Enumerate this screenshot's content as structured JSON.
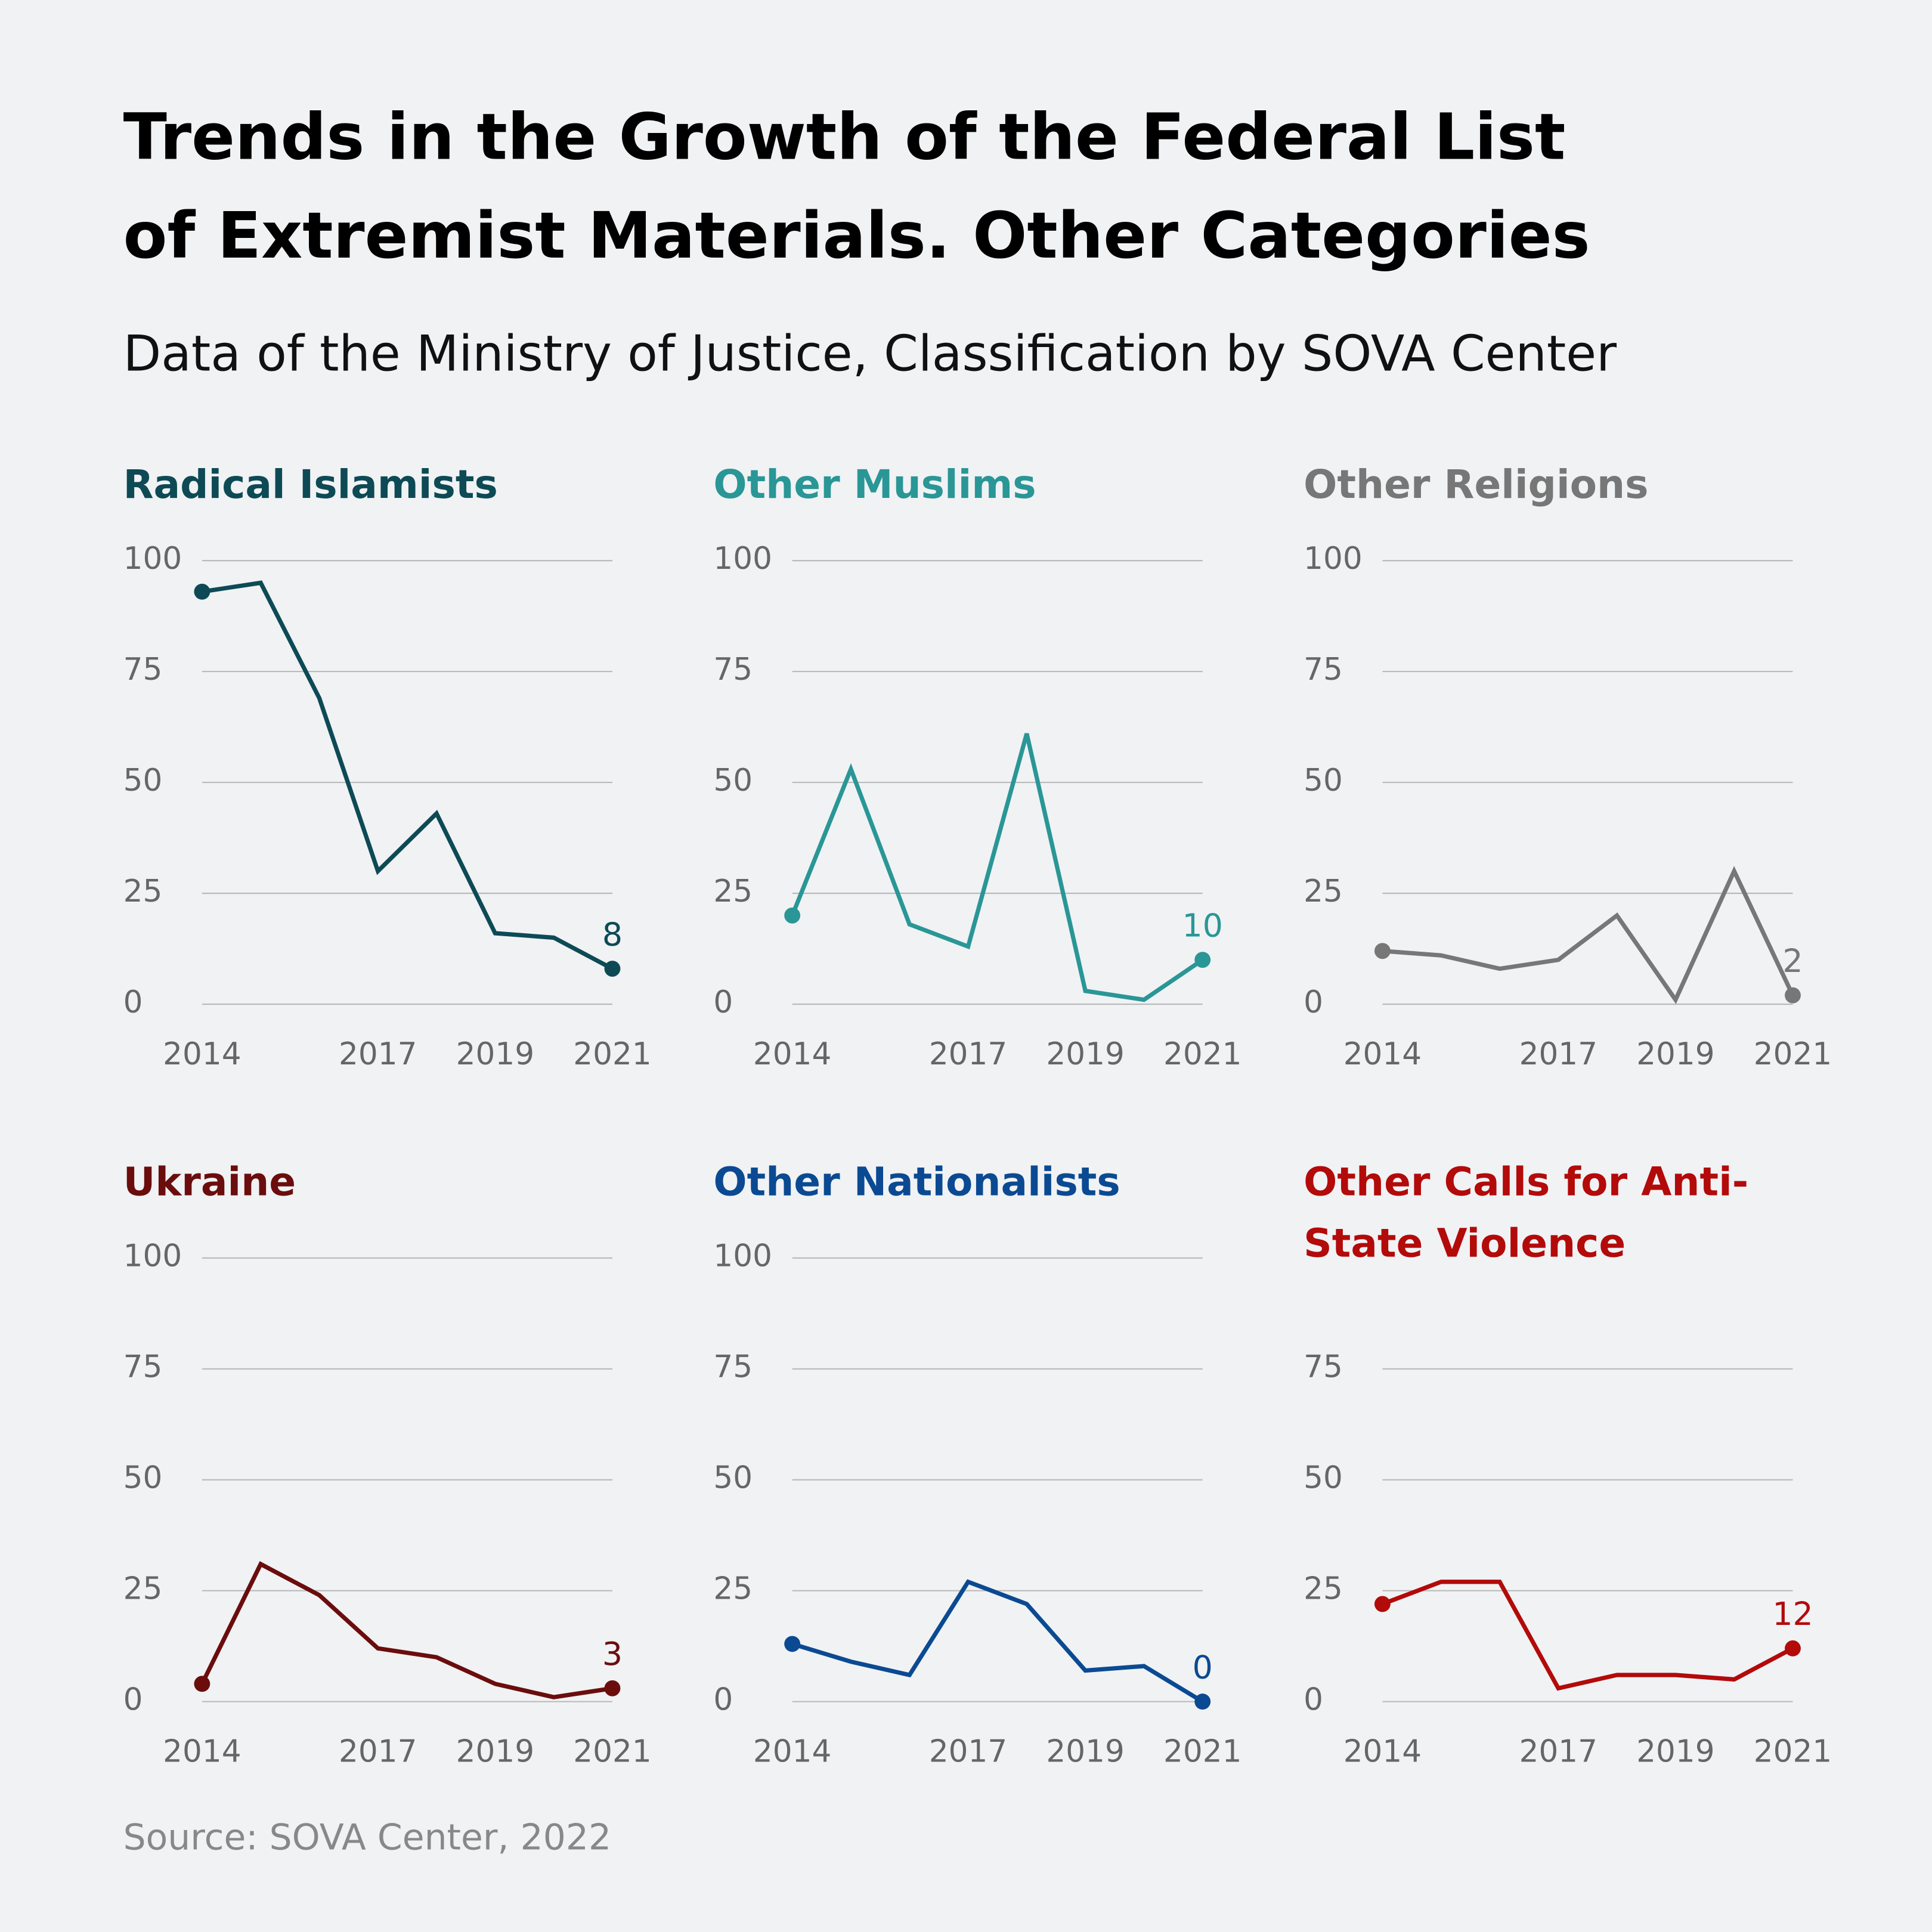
{
  "title": "Trends in the Growth of the Federal List of Extremist Materials. Other Categories",
  "subtitle": "Data of the Ministry of Justice, Classification by SOVA Center",
  "source": "Source: SOVA Center, 2022",
  "chart_data": [
    {
      "type": "line",
      "title": "Radical Islamists",
      "color": "#0d4a55",
      "x": [
        2014,
        2015,
        2016,
        2017,
        2018,
        2019,
        2020,
        2021
      ],
      "values": [
        93,
        95,
        69,
        30,
        43,
        16,
        15,
        8
      ],
      "xlim": [
        2014,
        2021
      ],
      "xticks": [
        2014,
        2017,
        2019,
        2021
      ],
      "ylim": [
        0,
        100
      ],
      "yticks": [
        0,
        25,
        50,
        75,
        100
      ],
      "grid": true
    },
    {
      "type": "line",
      "title": "Other Muslims",
      "color": "#2a9696",
      "x": [
        2014,
        2015,
        2016,
        2017,
        2018,
        2019,
        2020,
        2021
      ],
      "values": [
        20,
        53,
        18,
        13,
        61,
        3,
        1,
        10
      ],
      "xlim": [
        2014,
        2021
      ],
      "xticks": [
        2014,
        2017,
        2019,
        2021
      ],
      "ylim": [
        0,
        100
      ],
      "yticks": [
        0,
        25,
        50,
        75,
        100
      ],
      "grid": true
    },
    {
      "type": "line",
      "title": "Other Religions",
      "color": "#777777",
      "x": [
        2014,
        2015,
        2016,
        2017,
        2018,
        2019,
        2020,
        2021
      ],
      "values": [
        12,
        11,
        8,
        10,
        20,
        1,
        30,
        2
      ],
      "xlim": [
        2014,
        2021
      ],
      "xticks": [
        2014,
        2017,
        2019,
        2021
      ],
      "ylim": [
        0,
        100
      ],
      "yticks": [
        0,
        25,
        50,
        75,
        100
      ],
      "grid": true
    },
    {
      "type": "line",
      "title": "Ukraine",
      "color": "#6b0d0d",
      "x": [
        2014,
        2015,
        2016,
        2017,
        2018,
        2019,
        2020,
        2021
      ],
      "values": [
        4,
        31,
        24,
        12,
        10,
        4,
        1,
        3
      ],
      "xlim": [
        2014,
        2021
      ],
      "xticks": [
        2014,
        2017,
        2019,
        2021
      ],
      "ylim": [
        0,
        100
      ],
      "yticks": [
        0,
        25,
        50,
        75,
        100
      ],
      "grid": true
    },
    {
      "type": "line",
      "title": "Other Nationalists",
      "color": "#0b4a92",
      "x": [
        2014,
        2015,
        2016,
        2017,
        2018,
        2019,
        2020,
        2021
      ],
      "values": [
        13,
        9,
        6,
        27,
        22,
        7,
        8,
        0
      ],
      "xlim": [
        2014,
        2021
      ],
      "xticks": [
        2014,
        2017,
        2019,
        2021
      ],
      "ylim": [
        0,
        100
      ],
      "yticks": [
        0,
        25,
        50,
        75,
        100
      ],
      "grid": true
    },
    {
      "type": "line",
      "title": "Other Calls for Anti-State Violence",
      "color": "#b30a0a",
      "x": [
        2014,
        2015,
        2016,
        2017,
        2018,
        2019,
        2020,
        2021
      ],
      "values": [
        22,
        27,
        27,
        3,
        6,
        6,
        5,
        12
      ],
      "xlim": [
        2014,
        2021
      ],
      "xticks": [
        2014,
        2017,
        2019,
        2021
      ],
      "ylim": [
        0,
        100
      ],
      "yticks": [
        0,
        25,
        50,
        75
      ],
      "grid": true
    }
  ]
}
